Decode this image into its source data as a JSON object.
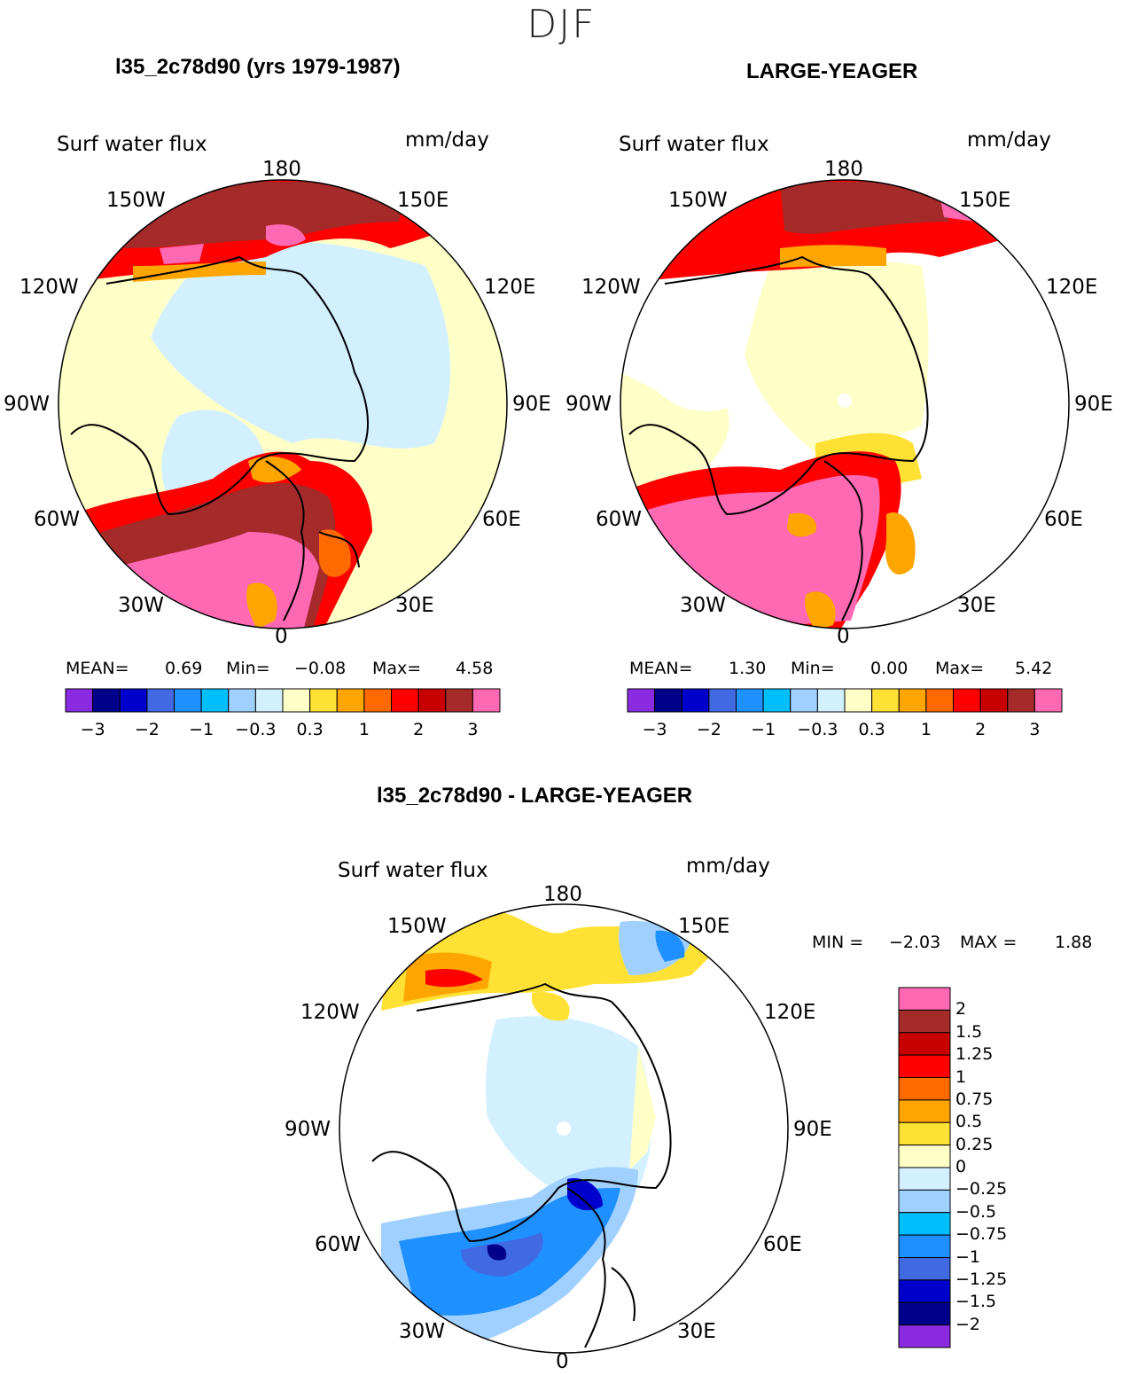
{
  "season": "DJF",
  "panels": [
    {
      "title": "l35_2c78d90 (yrs 1979-1987)",
      "field": "Surf water flux",
      "units": "mm/day",
      "stats": {
        "mean_label": "MEAN=",
        "mean": "0.69",
        "min_label": "Min=",
        "min": "−0.08",
        "max_label": "Max=",
        "max": "4.58"
      }
    },
    {
      "title": "LARGE-YEAGER",
      "field": "Surf water flux",
      "units": "mm/day",
      "stats": {
        "mean_label": "MEAN=",
        "mean": "1.30",
        "min_label": "Min=",
        "min": "0.00",
        "max_label": "Max=",
        "max": "5.42"
      }
    },
    {
      "title": "l35_2c78d90 - LARGE-YEAGER",
      "field": "Surf water flux",
      "units": "mm/day",
      "minmax": {
        "min_label": "MIN =",
        "min": "−2.03",
        "max_label": "MAX =",
        "max": "1.88"
      }
    }
  ],
  "lon_labels": [
    "180",
    "150E",
    "120E",
    "90E",
    "60E",
    "30E",
    "0",
    "30W",
    "60W",
    "90W",
    "120W",
    "150W"
  ],
  "colorbar_abs": {
    "colors": [
      "#8a2be2",
      "#00008b",
      "#0000cd",
      "#4169e1",
      "#1e90ff",
      "#00bfff",
      "#a0d0ff",
      "#d2f0ff",
      "#ffffc8",
      "#ffe135",
      "#ffa500",
      "#ff6a00",
      "#ff0000",
      "#c80000",
      "#a52a2a",
      "#ff69b4"
    ],
    "tick_labels": [
      "−3",
      "−2",
      "−1",
      "−0.3",
      "0.3",
      "1",
      "2",
      "3"
    ]
  },
  "colorbar_diff": {
    "colors": [
      "#ff69b4",
      "#a52a2a",
      "#c80000",
      "#ff0000",
      "#ff6a00",
      "#ffa500",
      "#ffe135",
      "#ffffc8",
      "#d2f0ff",
      "#a0d0ff",
      "#00bfff",
      "#1e90ff",
      "#4169e1",
      "#0000cd",
      "#00008b",
      "#8a2be2"
    ],
    "tick_labels": [
      "2",
      "1.5",
      "1.25",
      "1",
      "0.75",
      "0.5",
      "0.25",
      "0",
      "−0.25",
      "−0.5",
      "−0.75",
      "−1",
      "−1.25",
      "−1.5",
      "−2"
    ]
  }
}
